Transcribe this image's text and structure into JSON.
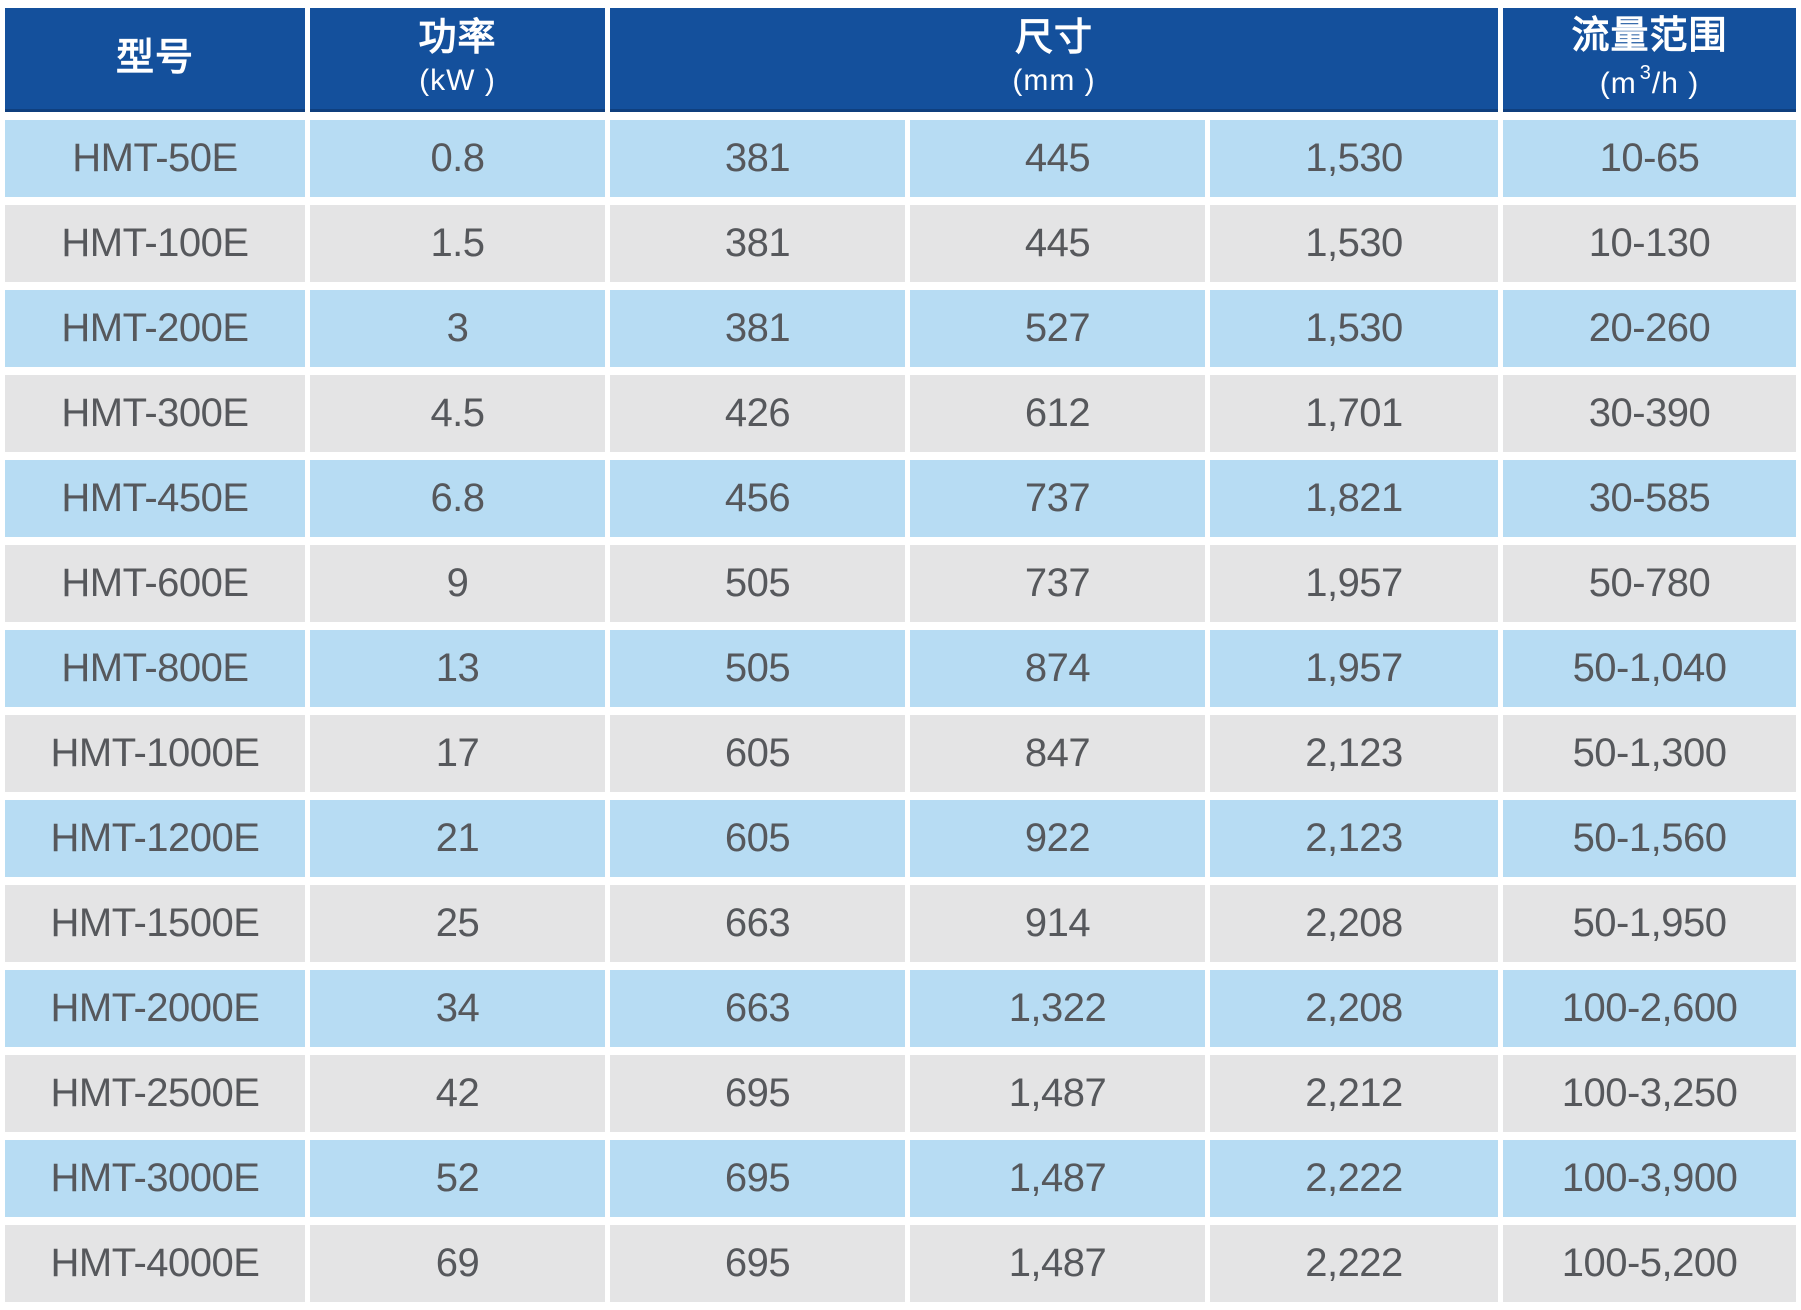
{
  "title": "HMT series specification table",
  "colors": {
    "header_bg": "#14509c",
    "header_edge": "#0f3f7e",
    "row_blue": "#b7dcf3",
    "row_gray": "#e4e4e5",
    "header_text": "#ffffff",
    "cell_text": "#56585c",
    "page_bg": "#ffffff"
  },
  "header": {
    "model": {
      "label": "型号"
    },
    "power": {
      "label": "功率",
      "unit": "(kW )"
    },
    "dimensions": {
      "label": "尺寸",
      "unit": "(mm )"
    },
    "flow": {
      "label": "流量范围",
      "unit_prefix": "(m",
      "unit_sup": "3",
      "unit_suffix": "/h )"
    }
  },
  "rows": [
    {
      "model": "HMT-50E",
      "power": "0.8",
      "dim1": "381",
      "dim2": "445",
      "dim3": "1,530",
      "flow": "10-65"
    },
    {
      "model": "HMT-100E",
      "power": "1.5",
      "dim1": "381",
      "dim2": "445",
      "dim3": "1,530",
      "flow": "10-130"
    },
    {
      "model": "HMT-200E",
      "power": "3",
      "dim1": "381",
      "dim2": "527",
      "dim3": "1,530",
      "flow": "20-260"
    },
    {
      "model": "HMT-300E",
      "power": "4.5",
      "dim1": "426",
      "dim2": "612",
      "dim3": "1,701",
      "flow": "30-390"
    },
    {
      "model": "HMT-450E",
      "power": "6.8",
      "dim1": "456",
      "dim2": "737",
      "dim3": "1,821",
      "flow": "30-585"
    },
    {
      "model": "HMT-600E",
      "power": "9",
      "dim1": "505",
      "dim2": "737",
      "dim3": "1,957",
      "flow": "50-780"
    },
    {
      "model": "HMT-800E",
      "power": "13",
      "dim1": "505",
      "dim2": "874",
      "dim3": "1,957",
      "flow": "50-1,040"
    },
    {
      "model": "HMT-1000E",
      "power": "17",
      "dim1": "605",
      "dim2": "847",
      "dim3": "2,123",
      "flow": "50-1,300"
    },
    {
      "model": "HMT-1200E",
      "power": "21",
      "dim1": "605",
      "dim2": "922",
      "dim3": "2,123",
      "flow": "50-1,560"
    },
    {
      "model": "HMT-1500E",
      "power": "25",
      "dim1": "663",
      "dim2": "914",
      "dim3": "2,208",
      "flow": "50-1,950"
    },
    {
      "model": "HMT-2000E",
      "power": "34",
      "dim1": "663",
      "dim2": "1,322",
      "dim3": "2,208",
      "flow": "100-2,600"
    },
    {
      "model": "HMT-2500E",
      "power": "42",
      "dim1": "695",
      "dim2": "1,487",
      "dim3": "2,212",
      "flow": "100-3,250"
    },
    {
      "model": "HMT-3000E",
      "power": "52",
      "dim1": "695",
      "dim2": "1,487",
      "dim3": "2,222",
      "flow": "100-3,900"
    },
    {
      "model": "HMT-4000E",
      "power": "69",
      "dim1": "695",
      "dim2": "1,487",
      "dim3": "2,222",
      "flow": "100-5,200"
    }
  ]
}
